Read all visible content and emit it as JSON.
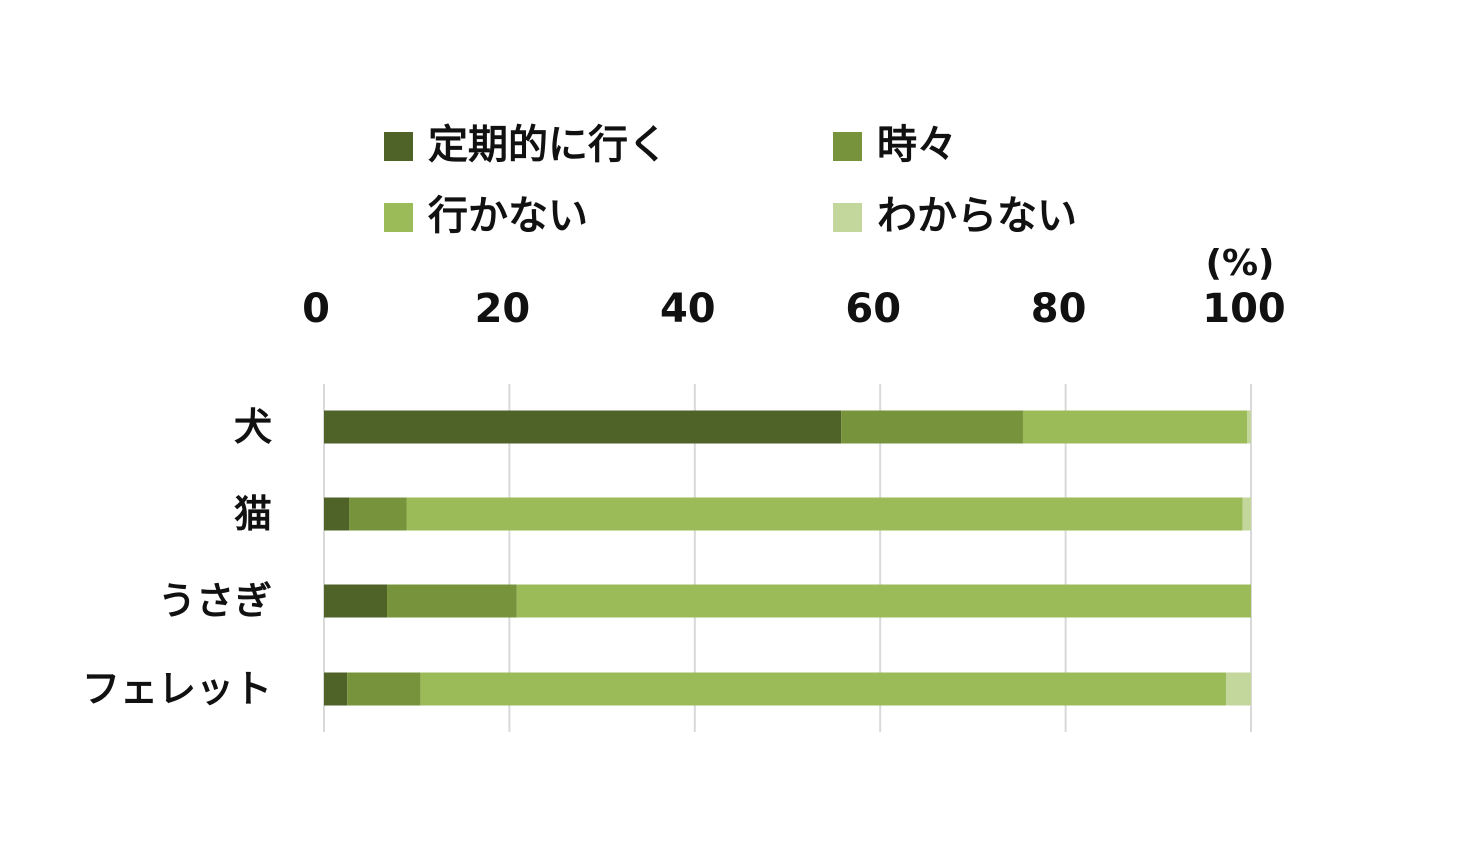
{
  "chart_data": {
    "type": "bar",
    "orientation": "horizontal",
    "stacked": true,
    "unit_label": "(%)",
    "categories": [
      "犬",
      "猫",
      "うさぎ",
      "フェレット"
    ],
    "series": [
      {
        "name": "定期的に行く",
        "color": "#4f6228",
        "values": [
          55.8,
          2.7,
          6.8,
          2.5
        ]
      },
      {
        "name": "時々",
        "color": "#77933c",
        "values": [
          19.6,
          6.2,
          14.0,
          7.9
        ]
      },
      {
        "name": "行かない",
        "color": "#9bbb59",
        "values": [
          24.2,
          90.2,
          79.2,
          86.9
        ]
      },
      {
        "name": "わからない",
        "color": "#c3d69b",
        "values": [
          0.4,
          0.9,
          0.0,
          2.7
        ]
      }
    ],
    "xlim": [
      0,
      100
    ],
    "xticks": [
      0,
      20,
      40,
      60,
      80,
      100
    ],
    "xtick_labels": [
      "0",
      "20",
      "40",
      "60",
      "80",
      "100"
    ],
    "grid": true,
    "legend_position": "top",
    "axis_position": "top"
  }
}
